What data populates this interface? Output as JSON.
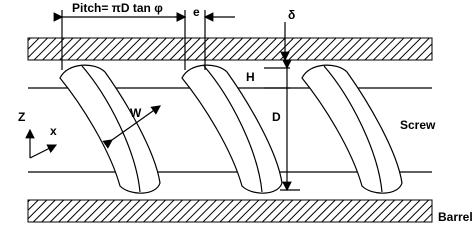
{
  "labels": {
    "pitch": "Pitch= πD tan φ",
    "e": "e",
    "delta": "δ",
    "h": "H",
    "w": "W",
    "d": "D",
    "z": "Z",
    "x": "x",
    "screw": "Screw",
    "barrel": "Barrel"
  }
}
